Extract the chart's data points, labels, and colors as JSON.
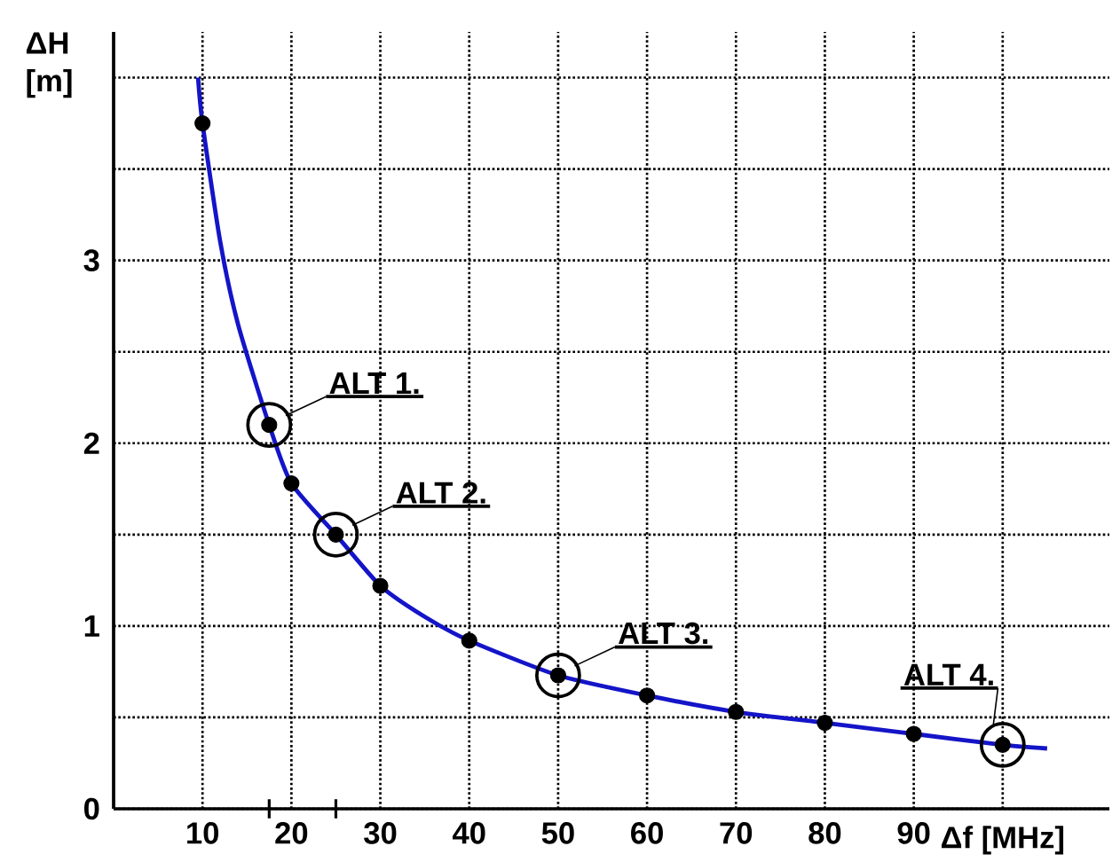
{
  "chart_data": {
    "type": "line",
    "xlabel": "Δf [MHz]",
    "ylabel": "ΔH [m]",
    "xlim": [
      0,
      112
    ],
    "ylim": [
      0,
      4.25
    ],
    "xticks": [
      10,
      20,
      30,
      40,
      50,
      60,
      70,
      80,
      90,
      {
        "value": 100,
        "label": null
      },
      {
        "value": 17.5,
        "label": null
      },
      {
        "value": 25,
        "label": null
      }
    ],
    "yticks": [
      0,
      {
        "value": 0.5,
        "label": null
      },
      1,
      {
        "value": 1.5,
        "label": null
      },
      2,
      {
        "value": 2.5,
        "label": null
      },
      3,
      {
        "value": 3.5,
        "label": null
      },
      {
        "value": 4,
        "label": null
      }
    ],
    "grid": true,
    "series": [
      {
        "color": "#1414c8",
        "marker": "none",
        "x": [
          9.5,
          10,
          12,
          14,
          17.5,
          20,
          25,
          30,
          35,
          40,
          50,
          60,
          70,
          80,
          90,
          100,
          105
        ],
        "values": [
          4.0,
          3.75,
          3.1,
          2.65,
          2.1,
          1.78,
          1.5,
          1.22,
          1.05,
          0.92,
          0.73,
          0.62,
          0.53,
          0.47,
          0.41,
          0.35,
          0.33
        ]
      },
      {
        "type": "scatter",
        "color": "#000000",
        "marker": "circle",
        "x": [
          10,
          17.5,
          20,
          25,
          30,
          40,
          50,
          60,
          70,
          80,
          90,
          100
        ],
        "values": [
          3.75,
          2.1,
          1.78,
          1.5,
          1.22,
          0.92,
          0.73,
          0.62,
          0.53,
          0.47,
          0.41,
          0.35
        ]
      }
    ],
    "annotations": [
      {
        "text": "ALT 1.",
        "x": 17.5,
        "y": 2.1
      },
      {
        "text": "ALT 2.",
        "x": 25,
        "y": 1.5
      },
      {
        "text": "ALT 3.",
        "x": 50,
        "y": 0.73
      },
      {
        "text": "ALT 4.",
        "x": 100,
        "y": 0.35
      }
    ]
  }
}
